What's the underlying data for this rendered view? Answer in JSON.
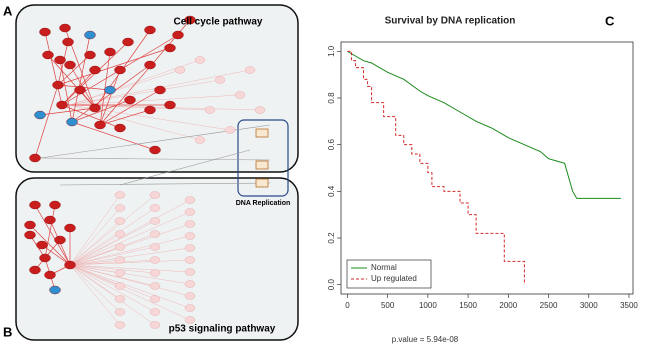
{
  "panels": {
    "a": {
      "letter": "A",
      "title": "Cell cycle pathway",
      "inset": "DNA Replication"
    },
    "b": {
      "letter": "B",
      "title": "p53 signaling pathway"
    },
    "c": {
      "letter": "C"
    }
  },
  "chart_data": {
    "type": "line",
    "title": "Survival by DNA replication",
    "annotation": "p.value = 5.94e-08",
    "xlim": [
      -80,
      3550
    ],
    "ylim": [
      -0.04,
      1.04
    ],
    "xticks": [
      0,
      500,
      1000,
      1500,
      2000,
      2500,
      3000,
      3500
    ],
    "yticks": [
      {
        "value": 0,
        "label": "0.0"
      },
      {
        "value": 0.2,
        "label": "0.2"
      },
      {
        "value": 0.4,
        "label": "0.4"
      },
      {
        "value": 0.6,
        "label": "0.6"
      },
      {
        "value": 0.8,
        "label": "0.8"
      },
      {
        "value": 1,
        "label": "1.0"
      }
    ],
    "legend": "bottom-left",
    "series": [
      {
        "name": "Normal",
        "color": "#1a8a1a",
        "dash": false,
        "x": [
          0,
          100,
          200,
          300,
          400,
          500,
          700,
          900,
          1000,
          1200,
          1400,
          1600,
          1800,
          2000,
          2200,
          2400,
          2500,
          2600,
          2700,
          2750,
          2800,
          2850,
          3400
        ],
        "values": [
          1,
          0.98,
          0.96,
          0.95,
          0.93,
          0.91,
          0.88,
          0.83,
          0.81,
          0.78,
          0.74,
          0.7,
          0.67,
          0.63,
          0.6,
          0.57,
          0.54,
          0.53,
          0.52,
          0.46,
          0.4,
          0.37,
          0.37
        ]
      },
      {
        "name": "Up regulated",
        "color": "#d42a2a",
        "dash": true,
        "x": [
          0,
          50,
          50,
          100,
          100,
          200,
          200,
          250,
          250,
          300,
          300,
          450,
          450,
          600,
          600,
          700,
          700,
          800,
          800,
          900,
          900,
          1000,
          1000,
          1050,
          1050,
          1200,
          1200,
          1400,
          1400,
          1500,
          1500,
          1600,
          1600,
          1950,
          1950,
          2200,
          2200
        ],
        "values": [
          1,
          1,
          0.96,
          0.96,
          0.93,
          0.93,
          0.88,
          0.88,
          0.85,
          0.85,
          0.78,
          0.78,
          0.72,
          0.72,
          0.64,
          0.64,
          0.6,
          0.6,
          0.56,
          0.56,
          0.52,
          0.52,
          0.48,
          0.48,
          0.42,
          0.42,
          0.4,
          0.4,
          0.35,
          0.35,
          0.3,
          0.3,
          0.22,
          0.22,
          0.1,
          0.1,
          0
        ]
      }
    ]
  }
}
